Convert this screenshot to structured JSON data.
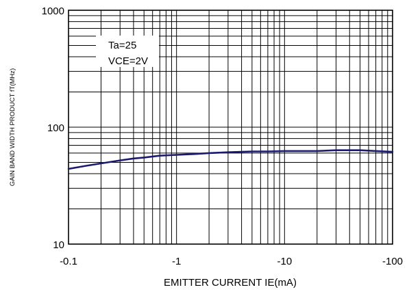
{
  "chart_data": {
    "type": "line",
    "xlabel": "EMITTER CURRENT   IE(mA)",
    "ylabel": "GAIN BAND WIDTH PRODUCT    fT(MHz)",
    "x_scale": "log",
    "y_scale": "log",
    "xlim": [
      -0.1,
      -100
    ],
    "ylim": [
      10,
      1000
    ],
    "x_ticks": [
      "-0.1",
      "-1",
      "-10",
      "-100"
    ],
    "y_ticks": [
      "10",
      "100",
      "1000"
    ],
    "annotations": [
      "Ta=25",
      "VCE=2V"
    ],
    "grid": true,
    "series": [
      {
        "color": "#1a1a6e",
        "x": [
          -0.1,
          -0.15,
          -0.2,
          -0.3,
          -0.4,
          -0.5,
          -0.7,
          -1,
          -1.5,
          -2,
          -3,
          -5,
          -7,
          -10,
          -20,
          -30,
          -50,
          -70,
          -100
        ],
        "y": [
          44,
          47,
          49,
          52,
          54,
          55,
          57,
          58,
          59,
          60,
          61,
          62,
          62,
          62.5,
          62.5,
          63.5,
          63.5,
          62.5,
          61.5
        ]
      }
    ]
  }
}
